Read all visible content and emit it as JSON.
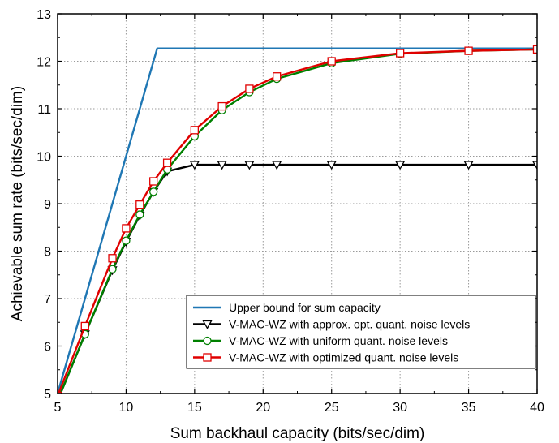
{
  "chart_data": {
    "type": "line",
    "title": "",
    "xlabel": "Sum backhaul capacity (bits/sec/dim)",
    "ylabel": "Achievable sum rate (bits/sec/dim)",
    "xlim": [
      5,
      40
    ],
    "ylim": [
      5,
      13
    ],
    "xticks": [
      5,
      10,
      15,
      20,
      25,
      30,
      35,
      40
    ],
    "yticks": [
      5,
      6,
      7,
      8,
      9,
      10,
      11,
      12,
      13
    ],
    "grid": true,
    "legend_position": "bottom-right",
    "series": [
      {
        "name": "Upper bound for sum capacity",
        "color": "#1f77b4",
        "marker": "none",
        "x": [
          5,
          12.27,
          40
        ],
        "y": [
          5,
          12.27,
          12.27
        ]
      },
      {
        "name": "V-MAC-WZ with approx. opt. quant. noise levels",
        "color": "#000000",
        "marker": "triangle-down",
        "x": [
          5,
          7,
          9,
          10,
          11,
          12,
          13,
          15,
          17,
          19,
          21,
          25,
          30,
          35,
          40
        ],
        "y": [
          4.85,
          6.25,
          7.6,
          8.2,
          8.75,
          9.25,
          9.68,
          9.82,
          9.82,
          9.82,
          9.82,
          9.82,
          9.82,
          9.82,
          9.82
        ]
      },
      {
        "name": "V-MAC-WZ with uniform quant. noise levels",
        "color": "#008000",
        "marker": "circle",
        "x": [
          5,
          7,
          9,
          10,
          11,
          12,
          13,
          15,
          17,
          19,
          21,
          25,
          30,
          35,
          40
        ],
        "y": [
          4.85,
          6.25,
          7.62,
          8.22,
          8.77,
          9.25,
          9.72,
          10.42,
          10.97,
          11.35,
          11.63,
          11.96,
          12.16,
          12.22,
          12.25
        ]
      },
      {
        "name": "V-MAC-WZ with optimized quant. noise levels",
        "color": "#e00000",
        "marker": "square",
        "x": [
          5,
          7,
          9,
          10,
          11,
          12,
          13,
          15,
          17,
          19,
          21,
          25,
          30,
          35,
          40
        ],
        "y": [
          4.95,
          6.42,
          7.85,
          8.48,
          8.98,
          9.47,
          9.86,
          10.55,
          11.05,
          11.42,
          11.68,
          12.0,
          12.17,
          12.22,
          12.25
        ]
      }
    ]
  }
}
